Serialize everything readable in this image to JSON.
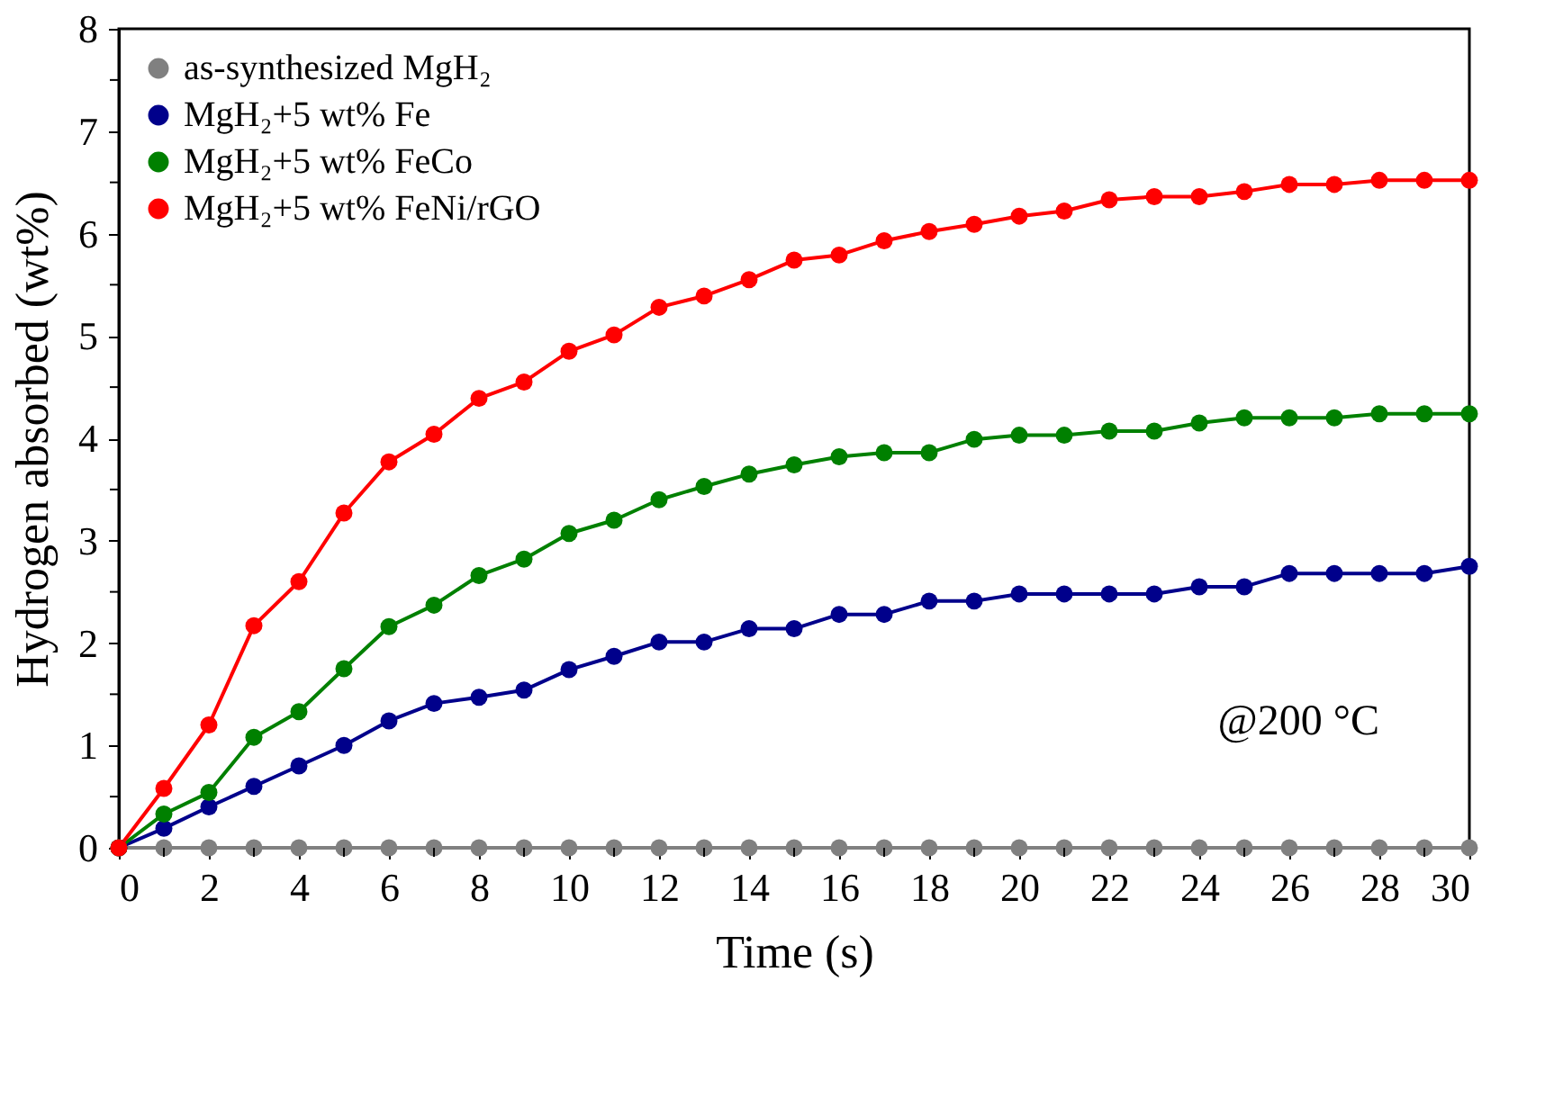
{
  "chart_data": {
    "type": "line",
    "xlabel": "Time (s)",
    "ylabel": "Hydrogen absorbed (wt%)",
    "x": [
      0,
      1,
      2,
      3,
      4,
      5,
      6,
      7,
      8,
      9,
      10,
      11,
      12,
      13,
      14,
      15,
      16,
      17,
      18,
      19,
      20,
      21,
      22,
      23,
      24,
      25,
      26,
      27,
      28,
      29,
      30
    ],
    "series": [
      {
        "name": "as-synthesized MgH₂",
        "color": "#808080",
        "values": [
          0,
          0,
          0,
          0,
          0,
          0,
          0,
          0,
          0,
          0,
          0,
          0,
          0,
          0,
          0,
          0,
          0,
          0,
          0,
          0,
          0,
          0,
          0,
          0,
          0,
          0,
          0,
          0,
          0,
          0,
          0
        ]
      },
      {
        "name": "MgH₂+5 wt% Fe",
        "color": "#00008b",
        "values": [
          0,
          0.19,
          0.4,
          0.6,
          0.8,
          1.0,
          1.24,
          1.41,
          1.47,
          1.54,
          1.74,
          1.87,
          2.01,
          2.01,
          2.14,
          2.14,
          2.28,
          2.28,
          2.41,
          2.41,
          2.48,
          2.48,
          2.48,
          2.48,
          2.55,
          2.55,
          2.68,
          2.68,
          2.68,
          2.68,
          2.75
        ]
      },
      {
        "name": "MgH₂+5 wt% FeCo",
        "color": "#008000",
        "values": [
          0,
          0.33,
          0.54,
          1.08,
          1.33,
          1.75,
          2.16,
          2.37,
          2.66,
          2.82,
          3.07,
          3.2,
          3.4,
          3.53,
          3.65,
          3.74,
          3.82,
          3.86,
          3.86,
          3.99,
          4.03,
          4.03,
          4.07,
          4.07,
          4.15,
          4.2,
          4.2,
          4.2,
          4.24,
          4.24,
          4.24
        ]
      },
      {
        "name": "MgH₂+5 wt% FeNi/rGO",
        "color": "#ff0000",
        "values": [
          0,
          0.58,
          1.2,
          2.17,
          2.6,
          3.27,
          3.77,
          4.04,
          4.39,
          4.55,
          4.85,
          5.01,
          5.28,
          5.39,
          5.55,
          5.74,
          5.79,
          5.93,
          6.02,
          6.09,
          6.17,
          6.22,
          6.33,
          6.36,
          6.36,
          6.41,
          6.48,
          6.48,
          6.52,
          6.52,
          6.52
        ]
      }
    ],
    "xlim": [
      0,
      30
    ],
    "ylim": [
      0,
      8
    ],
    "xticks": [
      0,
      {
        "value": 1,
        "label": null
      },
      2,
      {
        "value": 3,
        "label": null
      },
      4,
      {
        "value": 5,
        "label": null
      },
      6,
      {
        "value": 7,
        "label": null
      },
      8,
      {
        "value": 9,
        "label": null
      },
      10,
      {
        "value": 11,
        "label": null
      },
      12,
      {
        "value": 13,
        "label": null
      },
      14,
      {
        "value": 15,
        "label": null
      },
      16,
      {
        "value": 17,
        "label": null
      },
      18,
      {
        "value": 19,
        "label": null
      },
      20,
      {
        "value": 21,
        "label": null
      },
      22,
      {
        "value": 23,
        "label": null
      },
      24,
      {
        "value": 25,
        "label": null
      },
      26,
      {
        "value": 27,
        "label": null
      },
      28,
      {
        "value": 29,
        "label": null
      },
      30
    ],
    "yticks": [
      0,
      {
        "value": 0.5,
        "label": null
      },
      1,
      {
        "value": 1.5,
        "label": null
      },
      2,
      {
        "value": 2.5,
        "label": null
      },
      3,
      {
        "value": 3.5,
        "label": null
      },
      4,
      {
        "value": 4.5,
        "label": null
      },
      5,
      {
        "value": 5.5,
        "label": null
      },
      6,
      {
        "value": 6.5,
        "label": null
      },
      7,
      {
        "value": 7.5,
        "label": null
      },
      8
    ],
    "annotations": [
      "@200 °C"
    ],
    "grid": false,
    "legend": "top left",
    "marker": "circle",
    "line_style": "solid"
  }
}
